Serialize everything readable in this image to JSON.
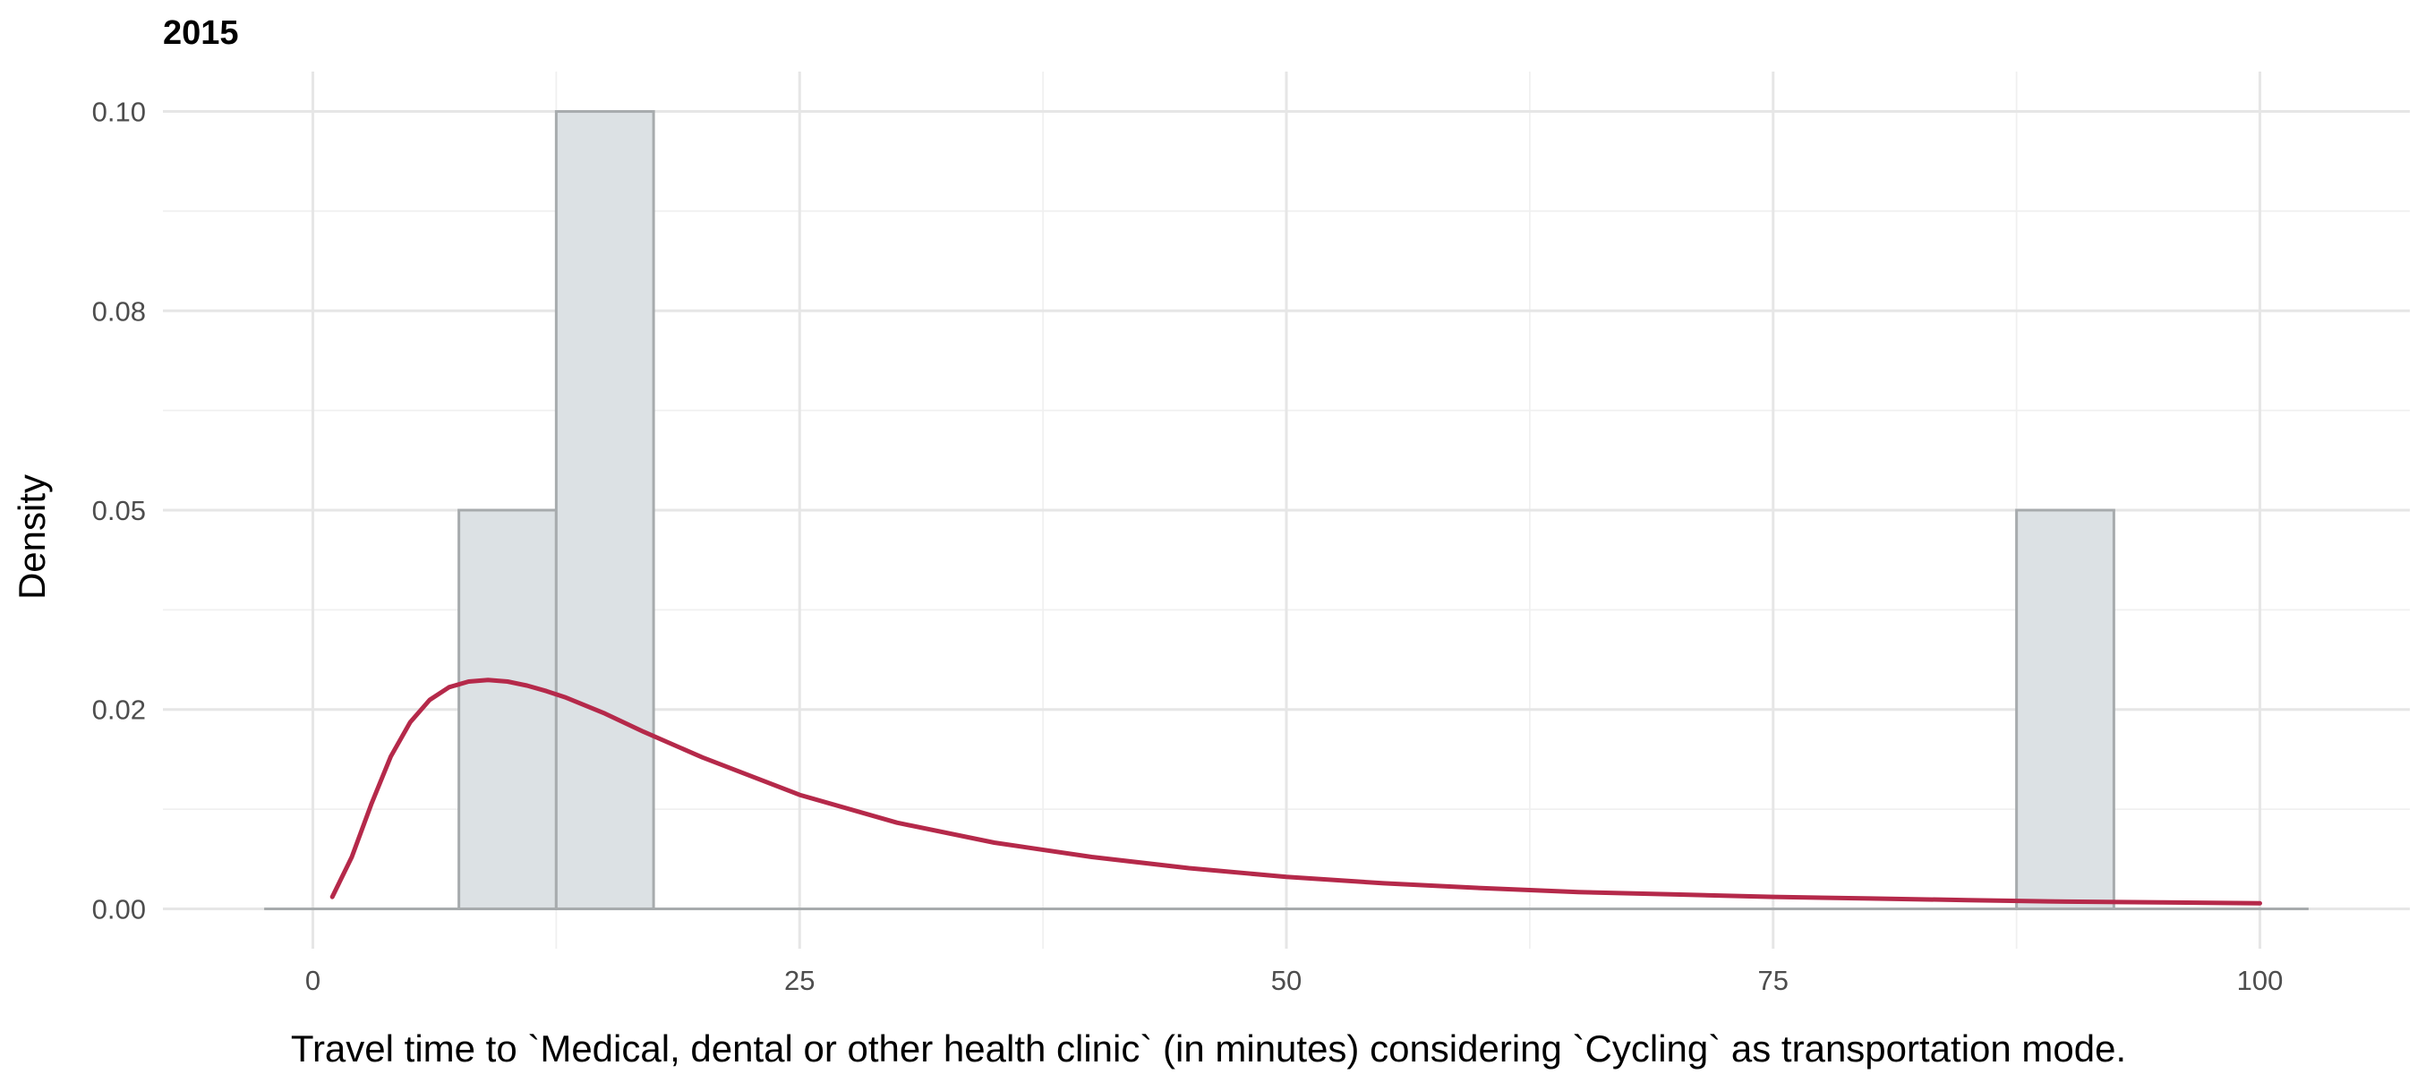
{
  "chart_data": {
    "type": "bar",
    "facet_title": "2015",
    "xlabel": "Travel time to `Medical, dental or other health clinic` (in minutes) considering `Cycling` as transportation mode.",
    "ylabel": "Density",
    "xlim": [
      -7.7,
      107.7
    ],
    "ylim": [
      -0.005,
      0.105
    ],
    "x_ticks": [
      0,
      25,
      50,
      75,
      100
    ],
    "x_tick_labels": [
      "0",
      "25",
      "50",
      "75",
      "100"
    ],
    "x_minor_ticks": [
      12.5,
      37.5,
      62.5,
      87.5
    ],
    "y_ticks": [
      0,
      0.025,
      0.05,
      0.075,
      0.1
    ],
    "y_tick_labels": [
      "0.00",
      "0.02",
      "0.05",
      "0.08",
      "0.10"
    ],
    "y_minor_ticks": [
      0.0125,
      0.0375,
      0.0625,
      0.0875
    ],
    "grid": true,
    "baseline_range": [
      -2.5,
      102.5
    ],
    "bins": [
      {
        "x0": 7.5,
        "x1": 12.5,
        "density": 0.05
      },
      {
        "x0": 12.5,
        "x1": 17.5,
        "density": 0.1
      },
      {
        "x0": 87.5,
        "x1": 92.5,
        "density": 0.05
      }
    ],
    "density_curve": {
      "x": [
        1,
        2,
        3,
        4,
        5,
        6,
        7,
        8,
        9,
        10,
        11,
        12,
        13,
        15,
        17,
        20,
        25,
        30,
        35,
        40,
        45,
        50,
        55,
        60,
        65,
        70,
        75,
        80,
        85,
        90,
        95,
        100
      ],
      "y": [
        0.0015,
        0.0065,
        0.0131,
        0.0191,
        0.0234,
        0.0262,
        0.0278,
        0.0285,
        0.0287,
        0.0285,
        0.028,
        0.0273,
        0.0265,
        0.0245,
        0.0222,
        0.019,
        0.0143,
        0.0108,
        0.0083,
        0.0065,
        0.0051,
        0.004,
        0.0032,
        0.0026,
        0.0021,
        0.0018,
        0.0015,
        0.0013,
        0.0011,
        0.0009,
        0.0008,
        0.0007
      ],
      "color": "#b5294a"
    },
    "bar_fill": "#dce1e4",
    "bar_stroke": "#a7abad"
  }
}
